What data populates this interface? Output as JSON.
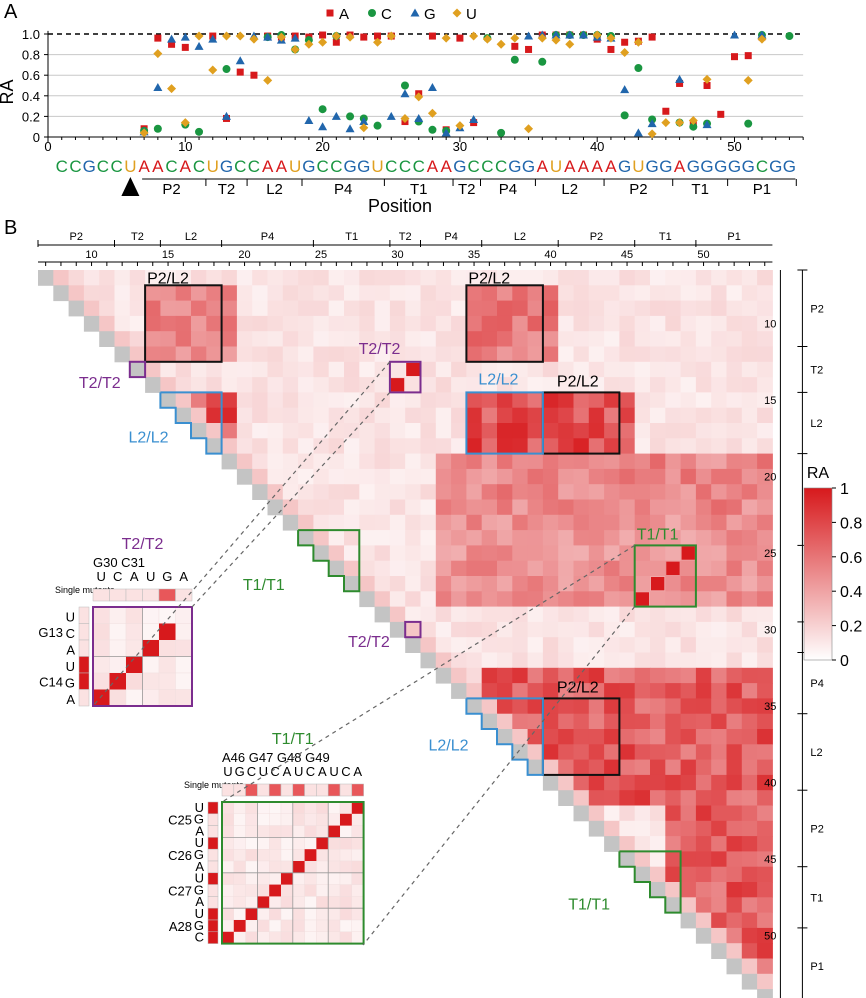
{
  "colors": {
    "A": "#d7191c",
    "C": "#1a9641",
    "G": "#2166ac",
    "U": "#e0a020",
    "purple": "#7b2d8e",
    "green": "#2e8b2e",
    "blue": "#3a8fd0",
    "black": "#111111",
    "heat_high": "#d7191c"
  },
  "panel_a": {
    "label": "A",
    "ylabel": "RA",
    "xlabel": "Position",
    "legend": [
      "A",
      "C",
      "G",
      "U"
    ],
    "yticks": [
      "0",
      "0.2",
      "0.4",
      "0.6",
      "0.8",
      "1.0"
    ],
    "xticks": [
      "0",
      "10",
      "20",
      "30",
      "40",
      "50"
    ],
    "sequence": "CCGCCUAACACUGCCAAUGCCGGUCCCAAGCCCGGAUAAAAGUGGAGGGGGCGG",
    "regions": [
      "P2",
      "T2",
      "L2",
      "P4",
      "T1",
      "T2",
      "P4",
      "L2",
      "P2",
      "T1",
      "P1"
    ]
  },
  "panel_b": {
    "label": "B",
    "colorbar_title": "RA",
    "colorbar_ticks": [
      "1",
      "0.8",
      "0.6",
      "0.4",
      "0.2",
      "0"
    ],
    "top_ticks": [
      "10",
      "15",
      "20",
      "25",
      "30",
      "35",
      "40",
      "45",
      "50"
    ],
    "right_ticks": [
      "10",
      "15",
      "20",
      "25",
      "30",
      "35",
      "40",
      "45",
      "50"
    ],
    "top_regions": [
      "P2",
      "T2",
      "L2",
      "P4",
      "T1",
      "T2",
      "P4",
      "L2",
      "P2",
      "T1",
      "P1"
    ],
    "right_regions": [
      "P2",
      "T2",
      "L2",
      "P4",
      "T1",
      "T2",
      "P4",
      "L2",
      "P2",
      "T1",
      "P1"
    ],
    "box_labels": {
      "p2l2": "P2/L2",
      "t2t2": "T2/T2",
      "l2l2": "L2/L2",
      "t1t1": "T1/T1"
    },
    "inset_t2": {
      "title": "T2/T2",
      "col_header": "G30  C31",
      "col_letters": "UCAUGA",
      "row_letters": [
        "U",
        "C",
        "A",
        "U",
        "G",
        "A"
      ],
      "row_names": [
        "G13",
        "C14"
      ],
      "single_mutants": "Single mutants"
    },
    "inset_t1": {
      "title": "T1/T1",
      "col_header": "A46  G47  G48  G49",
      "col_letters": "UGCUCAUCAUCA",
      "row_letters": [
        "U",
        "G",
        "A",
        "U",
        "G",
        "A",
        "U",
        "G",
        "A",
        "U",
        "G",
        "C"
      ],
      "row_names": [
        "C25",
        "C26",
        "C27",
        "A28"
      ],
      "single_mutants": "Single mutants"
    }
  },
  "chart_data": [
    {
      "type": "scatter",
      "title": "",
      "xlabel": "Position",
      "ylabel": "RA",
      "xlim": [
        0,
        55
      ],
      "ylim": [
        0,
        1.05
      ],
      "reference_line": 1.0,
      "legend_position": "top",
      "series": [
        {
          "name": "A",
          "marker": "square",
          "points": [
            [
              7,
              0.08
            ],
            [
              8,
              0.96
            ],
            [
              9,
              0.9
            ],
            [
              10,
              0.87
            ],
            [
              12,
              0.98
            ],
            [
              13,
              0.18
            ],
            [
              14,
              0.63
            ],
            [
              15,
              0.6
            ],
            [
              16,
              0.98
            ],
            [
              17,
              0.97
            ],
            [
              18,
              0.98
            ],
            [
              19,
              0.97
            ],
            [
              20,
              0.99
            ],
            [
              21,
              0.92
            ],
            [
              22,
              0.99
            ],
            [
              23,
              0.97
            ],
            [
              24,
              0.98
            ],
            [
              25,
              0.98
            ],
            [
              26,
              0.15
            ],
            [
              27,
              0.42
            ],
            [
              28,
              0.98
            ],
            [
              29,
              0.07
            ],
            [
              30,
              0.96
            ],
            [
              31,
              0.14
            ],
            [
              34,
              0.88
            ],
            [
              35,
              0.85
            ],
            [
              36,
              0.99
            ],
            [
              37,
              0.99
            ],
            [
              38,
              0.99
            ],
            [
              39,
              0.99
            ],
            [
              40,
              0.95
            ],
            [
              41,
              0.85
            ],
            [
              42,
              0.92
            ],
            [
              43,
              0.93
            ],
            [
              44,
              0.97
            ],
            [
              45,
              0.25
            ],
            [
              46,
              0.52
            ],
            [
              47,
              0.12
            ],
            [
              48,
              0.5
            ],
            [
              49,
              0.22
            ],
            [
              50,
              0.78
            ],
            [
              51,
              0.79
            ],
            [
              52,
              0.97
            ]
          ]
        },
        {
          "name": "C",
          "marker": "circle",
          "points": [
            [
              7,
              0.06
            ],
            [
              8,
              0.08
            ],
            [
              10,
              0.12
            ],
            [
              11,
              0.05
            ],
            [
              13,
              0.66
            ],
            [
              16,
              0.97
            ],
            [
              17,
              0.99
            ],
            [
              18,
              0.85
            ],
            [
              19,
              0.94
            ],
            [
              20,
              0.27
            ],
            [
              21,
              0.98
            ],
            [
              22,
              0.2
            ],
            [
              23,
              0.18
            ],
            [
              24,
              0.11
            ],
            [
              26,
              0.5
            ],
            [
              27,
              0.15
            ],
            [
              28,
              0.07
            ],
            [
              29,
              0.06
            ],
            [
              32,
              0.96
            ],
            [
              33,
              0.04
            ],
            [
              34,
              0.75
            ],
            [
              36,
              0.73
            ],
            [
              37,
              0.99
            ],
            [
              38,
              0.99
            ],
            [
              39,
              0.99
            ],
            [
              40,
              0.99
            ],
            [
              41,
              0.98
            ],
            [
              42,
              0.21
            ],
            [
              43,
              0.67
            ],
            [
              44,
              0.17
            ],
            [
              46,
              0.14
            ],
            [
              47,
              0.1
            ],
            [
              48,
              0.13
            ],
            [
              51,
              0.13
            ],
            [
              52,
              0.99
            ],
            [
              54,
              0.98
            ]
          ]
        },
        {
          "name": "G",
          "marker": "triangle",
          "points": [
            [
              7,
              0.05
            ],
            [
              8,
              0.48
            ],
            [
              9,
              0.95
            ],
            [
              10,
              0.97
            ],
            [
              11,
              0.88
            ],
            [
              12,
              0.95
            ],
            [
              13,
              0.2
            ],
            [
              14,
              0.74
            ],
            [
              15,
              0.98
            ],
            [
              16,
              0.97
            ],
            [
              17,
              0.94
            ],
            [
              18,
              0.96
            ],
            [
              19,
              0.16
            ],
            [
              20,
              0.1
            ],
            [
              21,
              0.2
            ],
            [
              22,
              0.08
            ],
            [
              23,
              0.15
            ],
            [
              25,
              0.2
            ],
            [
              26,
              0.42
            ],
            [
              27,
              0.18
            ],
            [
              28,
              0.48
            ],
            [
              29,
              0.04
            ],
            [
              30,
              0.09
            ],
            [
              31,
              0.17
            ],
            [
              35,
              0.98
            ],
            [
              36,
              0.99
            ],
            [
              37,
              0.99
            ],
            [
              38,
              0.99
            ],
            [
              39,
              0.99
            ],
            [
              40,
              0.97
            ],
            [
              41,
              0.96
            ],
            [
              42,
              0.46
            ],
            [
              43,
              0.04
            ],
            [
              44,
              0.13
            ],
            [
              46,
              0.56
            ],
            [
              48,
              0.12
            ],
            [
              50,
              0.99
            ],
            [
              52,
              0.99
            ]
          ]
        },
        {
          "name": "U",
          "marker": "diamond",
          "points": [
            [
              7,
              0.04
            ],
            [
              8,
              0.81
            ],
            [
              9,
              0.47
            ],
            [
              10,
              0.14
            ],
            [
              11,
              0.98
            ],
            [
              12,
              0.65
            ],
            [
              13,
              0.98
            ],
            [
              14,
              0.98
            ],
            [
              15,
              0.95
            ],
            [
              16,
              0.55
            ],
            [
              17,
              0.97
            ],
            [
              18,
              0.85
            ],
            [
              19,
              0.9
            ],
            [
              20,
              0.92
            ],
            [
              21,
              0.98
            ],
            [
              22,
              0.97
            ],
            [
              23,
              0.09
            ],
            [
              24,
              0.92
            ],
            [
              25,
              0.98
            ],
            [
              26,
              0.18
            ],
            [
              27,
              0.39
            ],
            [
              28,
              0.23
            ],
            [
              29,
              0.96
            ],
            [
              30,
              0.11
            ],
            [
              31,
              0.98
            ],
            [
              32,
              0.95
            ],
            [
              33,
              0.9
            ],
            [
              34,
              0.96
            ],
            [
              35,
              0.08
            ],
            [
              36,
              0.96
            ],
            [
              37,
              0.94
            ],
            [
              38,
              0.9
            ],
            [
              40,
              0.99
            ],
            [
              41,
              0.96
            ],
            [
              42,
              0.82
            ],
            [
              43,
              0.92
            ],
            [
              44,
              0.03
            ],
            [
              45,
              0.14
            ],
            [
              46,
              0.14
            ],
            [
              47,
              0.16
            ],
            [
              48,
              0.56
            ],
            [
              51,
              0.55
            ],
            [
              52,
              0.95
            ]
          ]
        }
      ]
    },
    {
      "type": "heatmap",
      "title": "",
      "xlabel": "",
      "ylabel": "",
      "positions": [
        7,
        54
      ],
      "layout": "upper-triangle",
      "value_range": [
        0,
        1
      ],
      "high_blocks": [
        {
          "rows": [
            8,
            12
          ],
          "cols": [
            14,
            19
          ],
          "value": 0.55
        },
        {
          "rows": [
            8,
            12
          ],
          "cols": [
            35,
            40
          ],
          "value": 0.6
        },
        {
          "rows": [
            15,
            18
          ],
          "cols": [
            14,
            19
          ],
          "value": 0.8
        },
        {
          "rows": [
            15,
            18
          ],
          "cols": [
            35,
            45
          ],
          "value": 0.8
        },
        {
          "rows": [
            19,
            22
          ],
          "cols": [
            33,
            54
          ],
          "value": 0.55
        },
        {
          "rows": [
            23,
            28
          ],
          "cols": [
            33,
            54
          ],
          "value": 0.5
        },
        {
          "rows": [
            33,
            41
          ],
          "cols": [
            36,
            54
          ],
          "value": 0.75
        },
        {
          "rows": [
            42,
            54
          ],
          "cols": [
            48,
            54
          ],
          "value": 0.75
        }
      ],
      "diagonal_pairs": [
        [
          13,
          31
        ],
        [
          14,
          30
        ],
        [
          25,
          49
        ],
        [
          26,
          48
        ],
        [
          27,
          47
        ],
        [
          28,
          46
        ]
      ]
    }
  ]
}
